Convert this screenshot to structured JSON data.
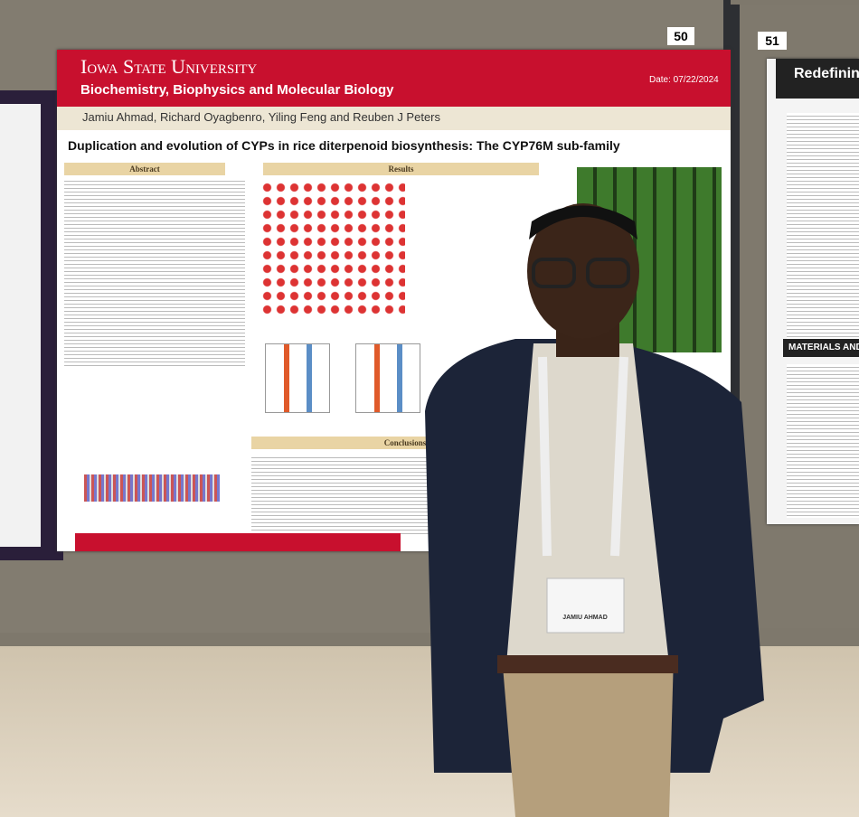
{
  "board_numbers": [
    "50",
    "51"
  ],
  "poster": {
    "university": "Iowa State University",
    "department": "Biochemistry, Biophysics and Molecular Biology",
    "date": "Date: 07/22/2024",
    "authors": "Jamiu Ahmad, Richard Oyagbenro, Yiling Feng and Reuben J Peters",
    "title": "Duplication and evolution of CYPs in rice diterpenoid biosynthesis: The CYP76M sub-family",
    "sections": [
      "Abstract",
      "Results",
      "Conclusions"
    ]
  },
  "right_poster": {
    "title": "Redefining",
    "section": "MATERIALS AND ME"
  },
  "badge": {
    "name": "JAMIU AHMAD"
  }
}
